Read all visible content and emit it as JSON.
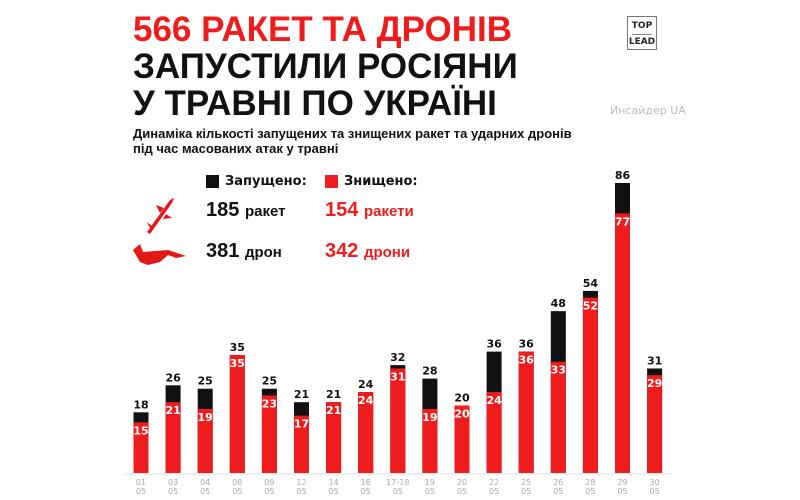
{
  "header": {
    "title_line1": "566 РАКЕТ ТА ДРОНІВ",
    "title_line2": "ЗАПУСТИЛИ РОСІЯНИ",
    "title_line3": "У ТРАВНІ ПО УКРАЇНІ",
    "watermark": "Инсайдер UA",
    "logo_top": "TOP",
    "logo_bottom": "LEAD",
    "subtitle_line1": "Динаміка кількості запущених та знищених ракет та ударних дронів",
    "subtitle_line2": "під час масованих атак у травні"
  },
  "summary": {
    "launched_label": "Запущено:",
    "destroyed_label": "Знищено:",
    "missiles_launched": "185",
    "missiles_launched_unit": "ракет",
    "missiles_destroyed": "154",
    "missiles_destroyed_unit": "ракети",
    "drones_launched": "381",
    "drones_launched_unit": "дрон",
    "drones_destroyed": "342",
    "drones_destroyed_unit": "дрони",
    "icons": [
      "missile-icon",
      "drone-icon"
    ]
  },
  "colors": {
    "launched": "#111111",
    "destroyed": "#ee1c1c",
    "axis_label": "#aaaaaa"
  },
  "chart_data": {
    "type": "bar",
    "stacked_overlay": true,
    "categories": [
      "01\n05",
      "03\n05",
      "04\n05",
      "08\n05",
      "09\n05",
      "12\n05",
      "14\n05",
      "16\n05",
      "17-18\n05",
      "19\n05",
      "20\n05",
      "22\n05",
      "25\n05",
      "26\n05",
      "28\n05",
      "29\n05",
      "30\n05"
    ],
    "series": [
      {
        "name": "Запущено:",
        "values": [
          18,
          26,
          25,
          35,
          25,
          21,
          21,
          24,
          32,
          28,
          20,
          36,
          36,
          48,
          54,
          86,
          31
        ]
      },
      {
        "name": "Знищено:",
        "values": [
          15,
          21,
          19,
          35,
          23,
          17,
          21,
          24,
          31,
          19,
          20,
          24,
          36,
          33,
          52,
          77,
          29
        ]
      }
    ],
    "ylim": [
      0,
      86
    ],
    "legend": "top-left",
    "grid": false
  }
}
